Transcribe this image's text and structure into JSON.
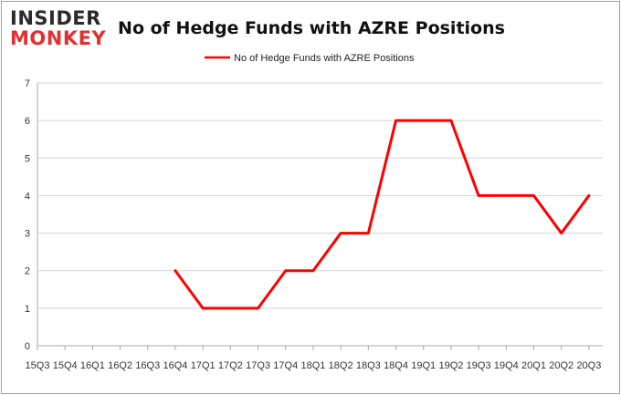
{
  "logo": {
    "line1": "INSIDER",
    "line2": "MONKEY"
  },
  "chart_data": {
    "type": "line",
    "title": "No of Hedge Funds with AZRE Positions",
    "xlabel": "",
    "ylabel": "",
    "ylim": [
      0,
      7
    ],
    "yticks": [
      0,
      1,
      2,
      3,
      4,
      5,
      6,
      7
    ],
    "grid": true,
    "legend_position": "top",
    "categories": [
      "15Q3",
      "15Q4",
      "16Q1",
      "16Q2",
      "16Q3",
      "16Q4",
      "17Q1",
      "17Q2",
      "17Q3",
      "17Q4",
      "18Q1",
      "18Q2",
      "18Q3",
      "18Q4",
      "19Q1",
      "19Q2",
      "19Q3",
      "19Q4",
      "20Q1",
      "20Q2",
      "20Q3"
    ],
    "series": [
      {
        "name": "No of Hedge Funds with AZRE Positions",
        "color": "#ff0000",
        "values": [
          null,
          null,
          null,
          null,
          null,
          2,
          1,
          1,
          1,
          2,
          2,
          3,
          3,
          6,
          6,
          6,
          4,
          4,
          4,
          3,
          4
        ]
      }
    ]
  }
}
